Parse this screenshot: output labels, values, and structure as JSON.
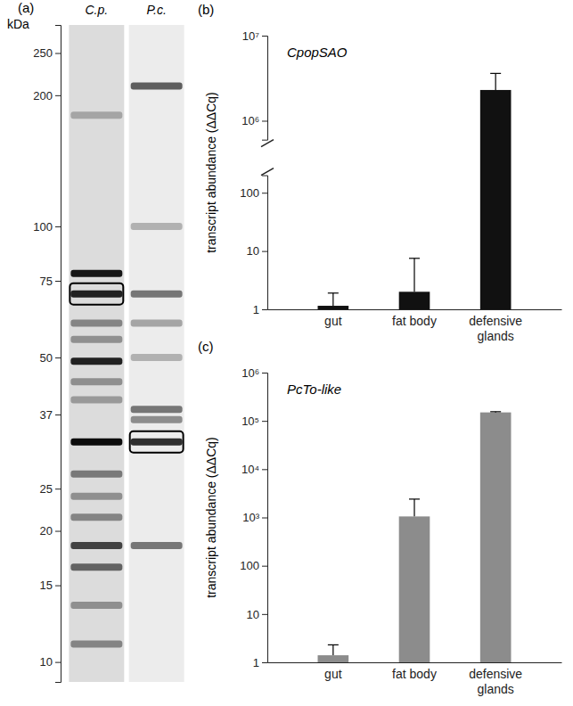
{
  "chart_data": [
    {
      "type": "gel",
      "panel": "(a)",
      "y_label": "kDa",
      "log": "y",
      "ylim": [
        9,
        290
      ],
      "yticks": [
        250,
        200,
        100,
        75,
        50,
        37,
        25,
        20,
        15,
        10
      ],
      "series": [
        {
          "name": "C.p.",
          "color": "#000000",
          "values": [
            180,
            78,
            70,
            60,
            55,
            49,
            44,
            40,
            32,
            27,
            24,
            21.5,
            18.5,
            16.5,
            13.5,
            11
          ],
          "intensity": [
            0.25,
            0.9,
            0.85,
            0.4,
            0.35,
            0.85,
            0.35,
            0.3,
            0.95,
            0.45,
            0.35,
            0.4,
            0.7,
            0.55,
            0.35,
            0.4
          ]
        },
        {
          "name": "P.c.",
          "color": "#000000",
          "values": [
            210,
            100,
            70,
            60,
            50,
            38,
            36,
            32,
            18.5
          ],
          "intensity": [
            0.6,
            0.25,
            0.5,
            0.3,
            0.25,
            0.5,
            0.4,
            0.8,
            0.5
          ]
        }
      ],
      "boxed": [
        70,
        32
      ]
    },
    {
      "type": "bar",
      "panel": "(b)",
      "title": "CpopSAO",
      "y_label": "transcript abundance (ΔΔCq)",
      "categories": [
        "gut",
        "fat body",
        "defensive glands"
      ],
      "values": [
        1.15,
        2.0,
        2300000
      ],
      "errors": [
        0.75,
        5.5,
        1300000
      ],
      "color": "#111111",
      "log": "y",
      "ylim": [
        1,
        10000000
      ],
      "ybreak": [
        200,
        600000
      ],
      "yticks": [
        1,
        10,
        100,
        {
          "value": 1000000,
          "label": "10⁶"
        },
        {
          "value": 10000000,
          "label": "10⁷"
        }
      ]
    },
    {
      "type": "bar",
      "panel": "(c)",
      "title": "PcTo-like",
      "y_label": "transcript abundance (ΔΔCq)",
      "categories": [
        "gut",
        "fat body",
        "defensive glands"
      ],
      "values": [
        1.4,
        1050,
        150000
      ],
      "errors": [
        0.9,
        1350,
        5000
      ],
      "color": "#8c8c8c",
      "log": "y",
      "ylim": [
        1,
        1000000
      ],
      "yticks": [
        1,
        10,
        100,
        {
          "value": 1000,
          "label": "10³"
        },
        {
          "value": 10000,
          "label": "10⁴"
        },
        {
          "value": 100000,
          "label": "10⁵"
        },
        {
          "value": 1000000,
          "label": "10⁶"
        }
      ]
    }
  ]
}
